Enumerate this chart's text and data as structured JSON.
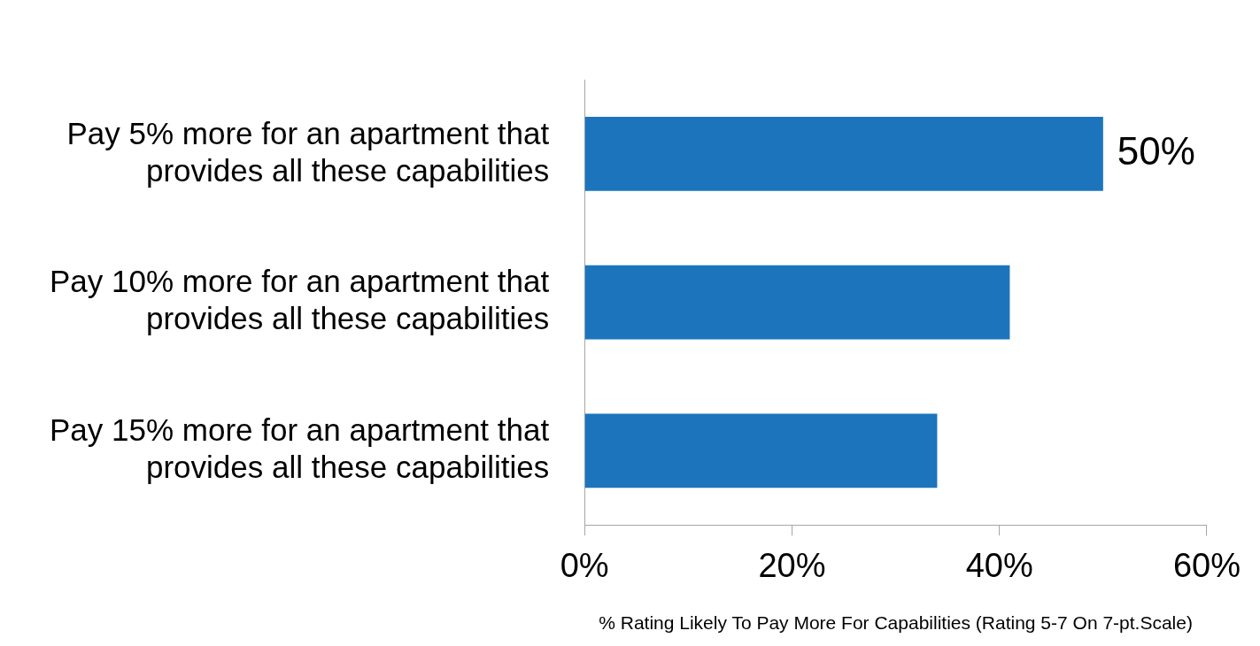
{
  "chart_data": {
    "type": "bar",
    "orientation": "horizontal",
    "categories": [
      "Pay 5% more for an apartment that provides all these capabilities",
      "Pay 10% more for an apartment that provides all these capabilities",
      "Pay 15% more for an apartment that provides all these capabilities"
    ],
    "values": [
      50,
      41,
      34
    ],
    "color": "#1c75bc",
    "value_labels": [
      "50%",
      null,
      null
    ],
    "xlim": [
      0,
      60
    ],
    "xticks": [
      {
        "value": 0,
        "label": "0%"
      },
      {
        "value": 20,
        "label": "20%"
      },
      {
        "value": 40,
        "label": "40%"
      },
      {
        "value": 60,
        "label": "60%"
      }
    ],
    "xlabel": "% Rating Likely To Pay More For Capabilities (Rating 5-7 On 7-pt.Scale)",
    "grid": false
  }
}
